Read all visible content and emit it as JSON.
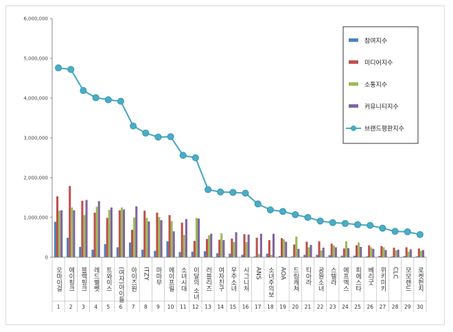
{
  "chart_data": {
    "type": "bar",
    "ylim": [
      0,
      6000000
    ],
    "y_ticks": [
      "0",
      "1,000,000",
      "2,000,000",
      "3,000,000",
      "4,000,000",
      "5,000,000",
      "6,000,000"
    ],
    "grid": false,
    "legend_position": "top-right",
    "categories": [
      "오마이걸",
      "에이핑크",
      "블랙핑크",
      "레드벨벳",
      "트와이스",
      "(여자)아이들",
      "아이즈원",
      "ITZY",
      "마마무",
      "에이프릴",
      "소녀시대",
      "이달의 소녀",
      "러블리즈",
      "여자친구",
      "우주소녀",
      "시그니처",
      "ANS",
      "소녀주의보",
      "AOA",
      "드림캐쳐",
      "티아라",
      "공원소녀",
      "스텔라",
      "에프엑스",
      "피에스타",
      "베리굿",
      "위키미키",
      "CLC",
      "모모랜드",
      "로켓펀치"
    ],
    "numbers": [
      "1",
      "2",
      "3",
      "4",
      "5",
      "6",
      "7",
      "8",
      "9",
      "10",
      "11",
      "12",
      "13",
      "14",
      "15",
      "16",
      "17",
      "18",
      "19",
      "20",
      "21",
      "22",
      "23",
      "24",
      "25",
      "26",
      "27",
      "28",
      "29",
      "30"
    ],
    "series": [
      {
        "name": "참여지수",
        "kind": "bar",
        "color": "#4f81bd",
        "values": [
          890000,
          490000,
          260000,
          190000,
          330000,
          250000,
          370000,
          190000,
          160000,
          400000,
          130000,
          140000,
          150000,
          100000,
          90000,
          60000,
          20000,
          90000,
          30000,
          20000,
          60000,
          60000,
          50000,
          40000,
          40000,
          20000,
          30000,
          20000,
          30000,
          20000
        ]
      },
      {
        "name": "미디어지수",
        "kind": "bar",
        "color": "#c0504d",
        "values": [
          1530000,
          1790000,
          1420000,
          1120000,
          990000,
          1180000,
          690000,
          1170000,
          1120000,
          1060000,
          870000,
          410000,
          460000,
          440000,
          470000,
          580000,
          490000,
          430000,
          480000,
          320000,
          390000,
          400000,
          340000,
          220000,
          300000,
          300000,
          280000,
          240000,
          250000,
          220000
        ]
      },
      {
        "name": "소통지수",
        "kind": "bar",
        "color": "#9bbb59",
        "values": [
          1170000,
          1250000,
          1060000,
          1270000,
          1190000,
          1250000,
          1000000,
          990000,
          1010000,
          910000,
          560000,
          990000,
          550000,
          600000,
          380000,
          380000,
          80000,
          60000,
          450000,
          520000,
          250000,
          170000,
          300000,
          400000,
          370000,
          250000,
          250000,
          170000,
          140000,
          160000
        ]
      },
      {
        "name": "커뮤니티지수",
        "kind": "bar",
        "color": "#8064a2",
        "values": [
          1180000,
          1180000,
          1440000,
          1410000,
          1250000,
          1200000,
          1280000,
          900000,
          930000,
          650000,
          960000,
          970000,
          590000,
          430000,
          630000,
          570000,
          590000,
          590000,
          390000,
          210000,
          310000,
          240000,
          250000,
          230000,
          260000,
          210000,
          180000,
          190000,
          200000,
          180000
        ]
      },
      {
        "name": "브랜드평판지수",
        "kind": "line",
        "color": "#4bacc6",
        "values": [
          4760000,
          4720000,
          4190000,
          4010000,
          3960000,
          3920000,
          3300000,
          3120000,
          3020000,
          3030000,
          2560000,
          2500000,
          1700000,
          1640000,
          1630000,
          1610000,
          1340000,
          1190000,
          1150000,
          1070000,
          1000000,
          910000,
          870000,
          850000,
          820000,
          800000,
          730000,
          650000,
          640000,
          570000
        ]
      }
    ]
  }
}
